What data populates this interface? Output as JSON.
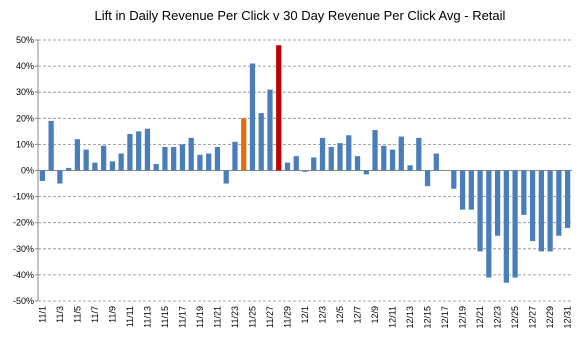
{
  "chart_data": {
    "type": "bar",
    "title": "Lift in Daily Revenue Per Click v 30 Day Revenue Per Click Avg - Retail",
    "categories": [
      "11/1",
      null,
      "11/3",
      null,
      "11/5",
      null,
      "11/7",
      null,
      "11/9",
      null,
      "11/11",
      null,
      "11/13",
      null,
      "11/15",
      null,
      "11/17",
      null,
      "11/19",
      null,
      "11/21",
      null,
      "11/23",
      null,
      "11/25",
      null,
      "11/27",
      null,
      "11/29",
      null,
      "12/1",
      null,
      "12/3",
      null,
      "12/5",
      null,
      "12/7",
      null,
      "12/9",
      null,
      "12/11",
      null,
      "12/13",
      null,
      "12/15",
      null,
      "12/17",
      null,
      "12/19",
      null,
      "12/21",
      null,
      "12/23",
      null,
      "12/25",
      null,
      "12/27",
      null,
      "12/29",
      null,
      "12/31"
    ],
    "values": [
      -4,
      19,
      -5,
      1,
      12,
      8,
      3,
      9.5,
      3.5,
      6.5,
      14,
      15,
      16,
      2.5,
      9,
      9,
      10,
      12.5,
      6,
      6.5,
      9,
      -5,
      11,
      20,
      41,
      22,
      31,
      48,
      3,
      5.5,
      -0.5,
      5,
      12.5,
      9,
      10.5,
      13.5,
      5.5,
      -1.5,
      15.5,
      9.5,
      8,
      13,
      2,
      12.5,
      -6,
      6.5,
      0,
      -7,
      -15,
      -15,
      -31,
      -41,
      -25,
      -43,
      -41,
      -17,
      -27,
      -31,
      -31,
      -25,
      -22
    ],
    "colors": [
      "#4a7ebb",
      "#4a7ebb",
      "#4a7ebb",
      "#4a7ebb",
      "#4a7ebb",
      "#4a7ebb",
      "#4a7ebb",
      "#4a7ebb",
      "#4a7ebb",
      "#4a7ebb",
      "#4a7ebb",
      "#4a7ebb",
      "#4a7ebb",
      "#4a7ebb",
      "#4a7ebb",
      "#4a7ebb",
      "#4a7ebb",
      "#4a7ebb",
      "#4a7ebb",
      "#4a7ebb",
      "#4a7ebb",
      "#4a7ebb",
      "#4a7ebb",
      "#e46c0a",
      "#4a7ebb",
      "#4a7ebb",
      "#4a7ebb",
      "#c00000",
      "#4a7ebb",
      "#4a7ebb",
      "#4a7ebb",
      "#4a7ebb",
      "#4a7ebb",
      "#4a7ebb",
      "#4a7ebb",
      "#4a7ebb",
      "#4a7ebb",
      "#4a7ebb",
      "#4a7ebb",
      "#4a7ebb",
      "#4a7ebb",
      "#4a7ebb",
      "#4a7ebb",
      "#4a7ebb",
      "#4a7ebb",
      "#4a7ebb",
      "#4a7ebb",
      "#4a7ebb",
      "#4a7ebb",
      "#4a7ebb",
      "#4a7ebb",
      "#4a7ebb",
      "#4a7ebb",
      "#4a7ebb",
      "#4a7ebb",
      "#4a7ebb",
      "#4a7ebb",
      "#4a7ebb",
      "#4a7ebb",
      "#4a7ebb",
      "#4a7ebb"
    ],
    "ylim": [
      -50,
      50
    ],
    "yticks": [
      {
        "value": -50,
        "label": "-50%"
      },
      {
        "value": -40,
        "label": "-40%"
      },
      {
        "value": -30,
        "label": "-30%"
      },
      {
        "value": -20,
        "label": "-20%"
      },
      {
        "value": -10,
        "label": "-10%"
      },
      {
        "value": 0,
        "label": "0%"
      },
      {
        "value": 10,
        "label": "10%"
      },
      {
        "value": 20,
        "label": "20%"
      },
      {
        "value": 30,
        "label": "30%"
      },
      {
        "value": 40,
        "label": "40%"
      },
      {
        "value": 50,
        "label": "50%"
      }
    ],
    "grid": true
  }
}
